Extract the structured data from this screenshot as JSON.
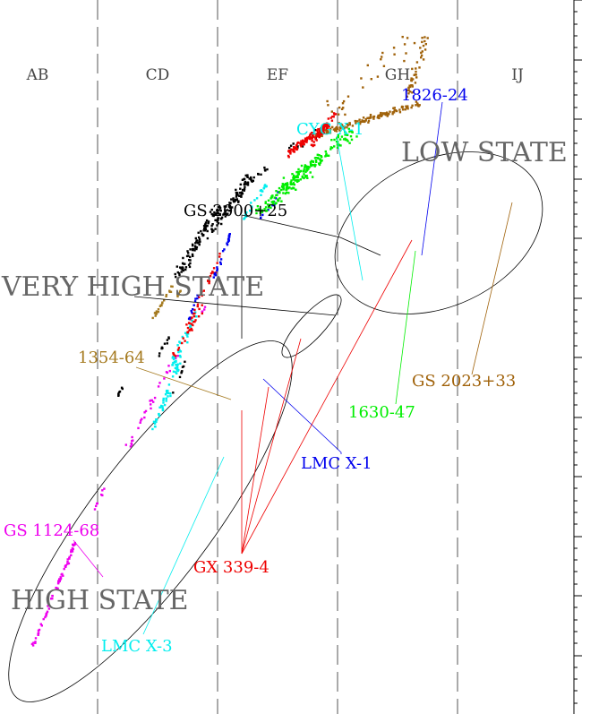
{
  "chart_data": {
    "type": "scatter",
    "title": "",
    "xlabel": "",
    "ylabel": "",
    "regions": [
      "AB",
      "CD",
      "EF",
      "GH",
      "IJ"
    ],
    "states": [
      "LOW STATE",
      "VERY HIGH STATE",
      "HIGH STATE"
    ],
    "colors": {
      "GS 1124-68": "#ee00ee",
      "LMC X-3": "#00eeee",
      "GX 339-4": "#ee0000",
      "LMC X-1": "#0000ee",
      "GS 2000+25": "#000000",
      "GS 1354-64": "#a57a1f",
      "CYG X-1": "#00eeee",
      "GS 1826-24": "#0000ee",
      "GS 1630-47": "#00ee00",
      "GS 2023+33": "#a0620a"
    },
    "series": [
      {
        "name": "GS 1124-68",
        "segments": [
          {
            "from": [
              0.55,
              1.02
            ],
            "to": [
              1.25,
              2.55
            ],
            "n": 70,
            "spread": 0.06
          },
          {
            "from": [
              1.55,
              3.0
            ],
            "to": [
              1.75,
              3.4
            ],
            "n": 8,
            "spread": 0.05
          },
          {
            "from": [
              2.15,
              4.0
            ],
            "to": [
              2.95,
              5.4
            ],
            "n": 30,
            "spread": 0.12
          },
          {
            "from": [
              3.35,
              6.0
            ],
            "to": [
              3.45,
              6.1
            ],
            "n": 4,
            "spread": 0.04
          }
        ]
      },
      {
        "name": "LMC X-3",
        "segments": [
          {
            "from": [
              2.55,
              4.28
            ],
            "to": [
              3.05,
              5.35
            ],
            "n": 50,
            "spread": 0.12
          },
          {
            "from": [
              2.85,
              5.2
            ],
            "to": [
              3.3,
              6.0
            ],
            "n": 35,
            "spread": 0.14
          }
        ]
      },
      {
        "name": "GX 339-4",
        "segments": [
          {
            "from": [
              2.9,
              5.35
            ],
            "to": [
              3.4,
              6.1
            ],
            "n": 25,
            "spread": 0.1
          },
          {
            "from": [
              3.1,
              5.75
            ],
            "to": [
              3.7,
              6.9
            ],
            "n": 30,
            "spread": 0.1
          }
        ]
      },
      {
        "name": "LMC X-1",
        "segments": [
          {
            "from": [
              3.15,
              5.9
            ],
            "to": [
              3.3,
              6.3
            ],
            "n": 12,
            "spread": 0.05
          },
          {
            "from": [
              3.55,
              6.5
            ],
            "to": [
              3.85,
              7.2
            ],
            "n": 25,
            "spread": 0.06
          }
        ]
      },
      {
        "name": "GS 2000+25",
        "segments": [
          {
            "from": [
              2.95,
              6.55
            ],
            "to": [
              3.65,
              7.6
            ],
            "n": 100,
            "spread": 0.16
          },
          {
            "from": [
              3.55,
              7.25
            ],
            "to": [
              4.2,
              8.05
            ],
            "n": 90,
            "spread": 0.16
          },
          {
            "from": [
              2.6,
              5.3
            ],
            "to": [
              2.85,
              5.7
            ],
            "n": 10,
            "spread": 0.05
          },
          {
            "from": [
              1.95,
              4.75
            ],
            "to": [
              2.05,
              4.9
            ],
            "n": 7,
            "spread": 0.04
          },
          {
            "from": [
              2.9,
              4.8
            ],
            "to": [
              3.1,
              5.3
            ],
            "n": 8,
            "spread": 0.05
          },
          {
            "from": [
              4.05,
              8.0
            ],
            "to": [
              4.45,
              8.15
            ],
            "n": 15,
            "spread": 0.15
          },
          {
            "from": [
              4.85,
              8.45
            ],
            "to": [
              5.3,
              8.7
            ],
            "n": 12,
            "spread": 0.2
          }
        ]
      },
      {
        "name": "GS 1354-64",
        "segments": [
          {
            "from": [
              2.55,
              5.9
            ],
            "to": [
              2.9,
              6.45
            ],
            "n": 22,
            "spread": 0.07
          },
          {
            "from": [
              2.9,
              6.15
            ],
            "to": [
              3.05,
              6.4
            ],
            "n": 6,
            "spread": 0.04
          }
        ]
      },
      {
        "name": "CYG X-1",
        "segments": [
          {
            "from": [
              4.05,
              7.4
            ],
            "to": [
              4.45,
              7.95
            ],
            "n": 25,
            "spread": 0.08
          }
        ]
      },
      {
        "name": "GS 1826-24",
        "segments": [
          {
            "from": [
              4.35,
              7.4
            ],
            "to": [
              4.65,
              7.8
            ],
            "n": 10,
            "spread": 0.08
          }
        ]
      },
      {
        "name": "GS 1630-47",
        "segments": [
          {
            "from": [
              4.3,
              7.5
            ],
            "to": [
              5.9,
              8.75
            ],
            "n": 170,
            "spread": 0.18
          },
          {
            "from": [
              4.7,
              7.9
            ],
            "to": [
              5.3,
              8.3
            ],
            "n": 40,
            "spread": 0.18
          }
        ]
      },
      {
        "name": "GS 2023+33",
        "segments": [
          {
            "from": [
              5.2,
              8.65
            ],
            "to": [
              7.0,
              9.15
            ],
            "n": 140,
            "spread": 0.08
          },
          {
            "from": [
              6.8,
              9.3
            ],
            "to": [
              7.1,
              10.1
            ],
            "n": 40,
            "spread": 0.18
          },
          {
            "from": [
              5.5,
              9.0
            ],
            "to": [
              7.2,
              10.3
            ],
            "n": 30,
            "spread": 0.45
          }
        ]
      },
      {
        "name": "GX 339-4",
        "segments": [
          {
            "from": [
              4.8,
              8.4
            ],
            "to": [
              5.5,
              8.85
            ],
            "n": 110,
            "spread": 0.1
          },
          {
            "from": [
              5.2,
              8.5
            ],
            "to": [
              5.6,
              9.0
            ],
            "n": 35,
            "spread": 0.08
          }
        ]
      }
    ],
    "annotations": [
      {
        "text": "GS 1124-68",
        "color": "#ee00ee"
      },
      {
        "text": "LMC X-3",
        "color": "#00eeee"
      },
      {
        "text": "GX 339-4",
        "color": "#ee0000"
      },
      {
        "text": "LMC X-1",
        "color": "#0000ee"
      },
      {
        "text": "1354-64",
        "color": "#a57a1f"
      },
      {
        "text": "GS 2000+25",
        "color": "#000000"
      },
      {
        "text": "CYG X-1",
        "color": "#00eeee"
      },
      {
        "text": "1826-24",
        "color": "#0000ee"
      },
      {
        "text": "1630-47",
        "color": "#00ee00"
      },
      {
        "text": "GS 2023+33",
        "color": "#a0620a"
      }
    ],
    "grid": false,
    "legend": "none"
  }
}
